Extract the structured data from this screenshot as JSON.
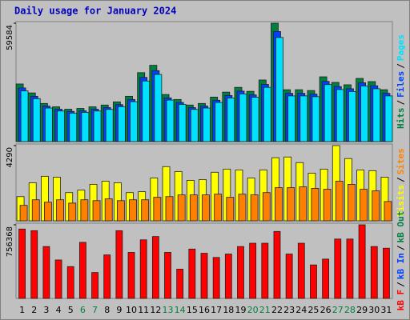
{
  "chart_data": [
    {
      "type": "bar",
      "title": "Daily usage for January 2024",
      "categories": [
        "1",
        "2",
        "3",
        "4",
        "5",
        "6",
        "7",
        "8",
        "9",
        "10",
        "11",
        "12",
        "13",
        "14",
        "15",
        "16",
        "17",
        "18",
        "19",
        "20",
        "21",
        "22",
        "23",
        "24",
        "25",
        "26",
        "27",
        "28",
        "29",
        "30",
        "31"
      ],
      "weekend": [
        "6",
        "7",
        "13",
        "14",
        "20",
        "21",
        "27",
        "28"
      ],
      "weekend_color": "#008040",
      "ylim": [
        0,
        59584
      ],
      "yticks": [
        59584
      ],
      "separator": "/",
      "series": [
        {
          "name": "Hits",
          "color": "#008040",
          "values": [
            29000,
            24500,
            19200,
            17500,
            16300,
            16700,
            17500,
            18400,
            20000,
            22800,
            34700,
            38400,
            23700,
            21200,
            18400,
            19200,
            22400,
            24900,
            27300,
            25300,
            31000,
            59584,
            26100,
            26100,
            25700,
            32600,
            29800,
            28600,
            31800,
            30200,
            26100
          ]
        },
        {
          "name": "Files",
          "color": "#0040ff",
          "values": [
            27000,
            22800,
            17900,
            16300,
            15200,
            15500,
            16300,
            17100,
            18600,
            21200,
            32300,
            35700,
            22000,
            19700,
            17100,
            17900,
            20800,
            23200,
            25400,
            23500,
            28800,
            55400,
            24300,
            24300,
            23900,
            30300,
            27700,
            26600,
            29600,
            28100,
            24300
          ]
        },
        {
          "name": "Pages",
          "color": "#00e0ff",
          "values": [
            25500,
            21600,
            16900,
            15400,
            14300,
            14700,
            15400,
            16200,
            17600,
            20100,
            30500,
            33800,
            20900,
            18700,
            16200,
            16900,
            19700,
            21900,
            24000,
            22300,
            27300,
            52400,
            23000,
            23000,
            22600,
            28700,
            26200,
            25200,
            28000,
            26600,
            23000
          ]
        }
      ]
    },
    {
      "type": "bar",
      "ylim": [
        0,
        4290
      ],
      "yticks": [
        4290
      ],
      "separator": "/",
      "series": [
        {
          "name": "Visits",
          "color": "#ffff00",
          "values": [
            1380,
            2170,
            2540,
            2490,
            1610,
            1750,
            2080,
            2260,
            2170,
            1610,
            1660,
            2440,
            3090,
            2810,
            2310,
            2350,
            2770,
            2950,
            2900,
            2440,
            2900,
            3600,
            3640,
            3320,
            2720,
            2950,
            4290,
            3550,
            2900,
            2860,
            2490
          ]
        },
        {
          "name": "Sites",
          "color": "#ff8000",
          "values": [
            880,
            1200,
            1060,
            1200,
            1010,
            1200,
            1150,
            1250,
            1150,
            1200,
            1200,
            1340,
            1380,
            1480,
            1480,
            1480,
            1520,
            1340,
            1520,
            1480,
            1610,
            1890,
            1890,
            1940,
            1850,
            1800,
            2260,
            2080,
            1800,
            1710,
            1100
          ]
        }
      ]
    },
    {
      "type": "bar",
      "ylim": [
        0,
        756368
      ],
      "yticks": [
        756368
      ],
      "separator": "/",
      "series": [
        {
          "name": "kB F",
          "color": "#ff0000",
          "values": [
            713000,
            696000,
            533000,
            395000,
            327000,
            576000,
            266000,
            447000,
            696000,
            473000,
            602000,
            636000,
            473000,
            301000,
            507000,
            464000,
            421000,
            456000,
            533000,
            567000,
            567000,
            688000,
            456000,
            567000,
            344000,
            404000,
            610000,
            610000,
            756368,
            533000,
            516000
          ]
        },
        {
          "name": "kB In",
          "color": "#0040ff"
        },
        {
          "name": "kB Out",
          "color": "#008040"
        }
      ]
    }
  ]
}
